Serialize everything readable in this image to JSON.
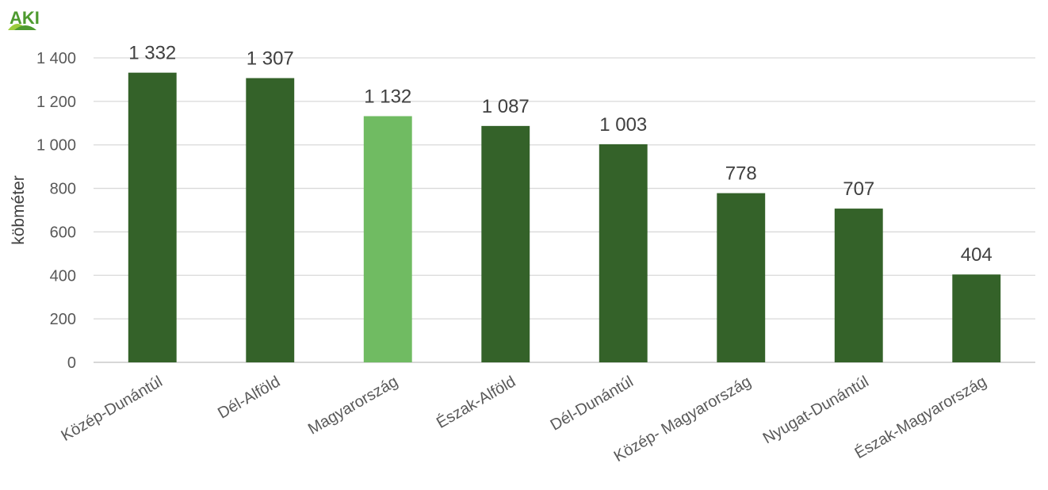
{
  "logo": {
    "text": "AKI",
    "colors": {
      "green": "#4e9a2f",
      "lightgreen": "#9ccc3c",
      "red": "#cc1f2f"
    }
  },
  "chart_data": {
    "type": "bar",
    "title": "",
    "xlabel": "",
    "ylabel": "köbméter",
    "ylim": [
      0,
      1400
    ],
    "yticks": [
      0,
      200,
      400,
      600,
      800,
      1000,
      1200,
      1400
    ],
    "ytick_labels": [
      "0",
      "200",
      "400",
      "600",
      "800",
      "1 000",
      "1 200",
      "1 400"
    ],
    "grid": true,
    "legend": "none",
    "categories": [
      "Közép-Dunántúl",
      "Dél-Alföld",
      "Magyarország",
      "Észak-Alföld",
      "Dél-Dunántúl",
      "Közép- Magyarország",
      "Nyugat-Dunántúl",
      "Észak-Magyarország"
    ],
    "values": [
      1332,
      1307,
      1132,
      1087,
      1003,
      778,
      707,
      404
    ],
    "value_labels": [
      "1 332",
      "1 307",
      "1 132",
      "1 087",
      "1 003",
      "778",
      "707",
      "404"
    ],
    "colors": [
      "#346229",
      "#346229",
      "#70bb62",
      "#346229",
      "#346229",
      "#346229",
      "#346229",
      "#346229"
    ]
  }
}
